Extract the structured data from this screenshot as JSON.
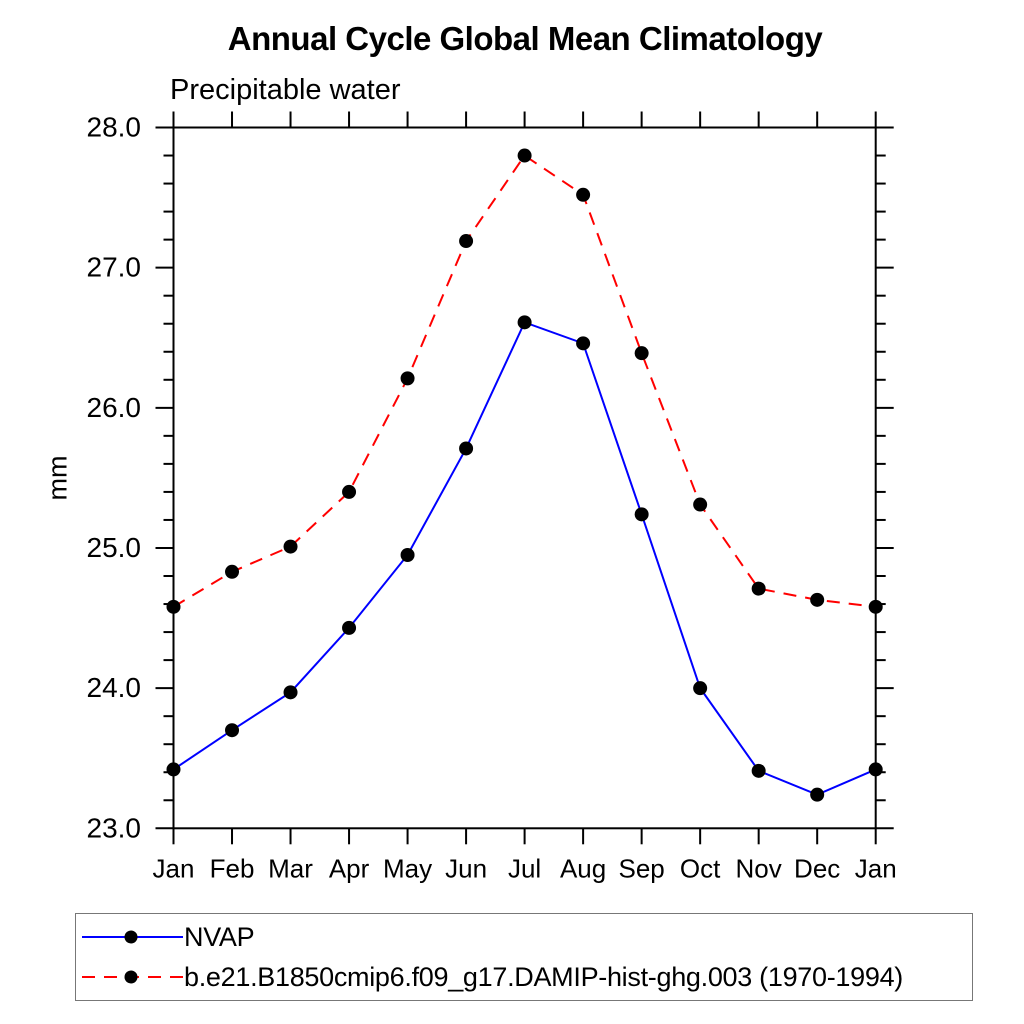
{
  "title": "Annual Cycle Global Mean Climatology",
  "subtitle": "Precipitable water",
  "ylabel": "mm",
  "colors": {
    "series_nvap": "#0000ff",
    "series_model": "#ff0000",
    "marker": "#000000",
    "axis": "#000000",
    "legend_border": "#777777"
  },
  "chart_data": {
    "type": "line",
    "title": "Annual Cycle Global Mean Climatology",
    "subtitle": "Precipitable water",
    "xlabel": "",
    "ylabel": "mm",
    "x_categories": [
      "Jan",
      "Feb",
      "Mar",
      "Apr",
      "May",
      "Jun",
      "Jul",
      "Aug",
      "Sep",
      "Oct",
      "Nov",
      "Dec",
      "Jan"
    ],
    "series": [
      {
        "name": "NVAP",
        "color": "#0000ff",
        "line_style": "solid",
        "marker": "filled-circle",
        "values": [
          23.42,
          23.7,
          23.97,
          24.43,
          24.95,
          25.71,
          26.61,
          26.46,
          25.24,
          24.0,
          23.41,
          23.24,
          23.42
        ]
      },
      {
        "name": "b.e21.B1850cmip6.f09_g17.DAMIP-hist-ghg.003 (1970-1994)",
        "color": "#ff0000",
        "line_style": "dashed",
        "marker": "filled-circle",
        "values": [
          24.58,
          24.83,
          25.01,
          25.4,
          26.21,
          27.19,
          27.8,
          27.52,
          26.39,
          25.31,
          24.71,
          24.63,
          24.58
        ]
      }
    ],
    "ylim": [
      23.0,
      28.0
    ],
    "ytick_major_labels": [
      "23.0",
      "24.0",
      "25.0",
      "26.0",
      "27.0",
      "28.0"
    ],
    "ytick_major_step": 1.0,
    "ytick_minor_step": 0.2,
    "grid": false,
    "legend_position": "bottom-box"
  }
}
